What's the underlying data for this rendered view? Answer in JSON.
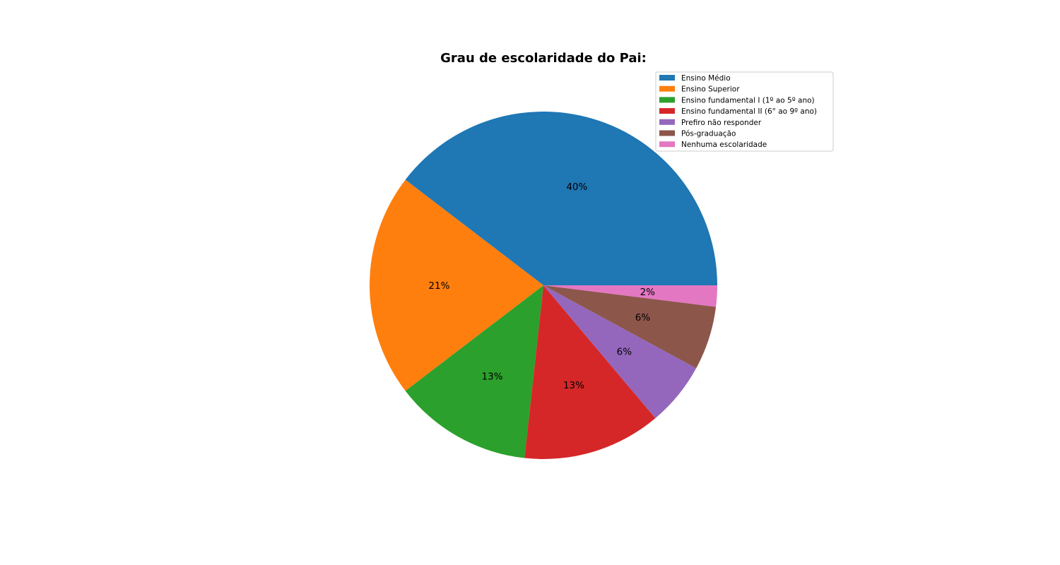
{
  "chart_data": {
    "type": "pie",
    "title": "Grau de escolaridade do Pai:",
    "slices": [
      {
        "label": "Ensino Médio",
        "value": 40,
        "pct_label": "40%",
        "color": "#1f77b4"
      },
      {
        "label": "Ensino Superior",
        "value": 21,
        "pct_label": "21%",
        "color": "#ff7f0e"
      },
      {
        "label": " Ensino fundamental I (1º ao 5º ano)",
        "value": 13,
        "pct_label": "13%",
        "color": "#2ca02c"
      },
      {
        "label": "Ensino fundamental II (6° ao 9º ano)",
        "value": 13,
        "pct_label": "13%",
        "color": "#d62728"
      },
      {
        "label": " Prefiro não responder",
        "value": 6,
        "pct_label": "6%",
        "color": "#9467bd"
      },
      {
        "label": " Pós-graduação",
        "value": 6,
        "pct_label": "6%",
        "color": "#8c564b"
      },
      {
        "label": "Nenhuma escolaridade",
        "value": 2,
        "pct_label": "2%",
        "color": "#e377c2"
      }
    ],
    "start_angle_deg": 0,
    "direction": "counterclockwise",
    "legend_position": "top-right"
  }
}
